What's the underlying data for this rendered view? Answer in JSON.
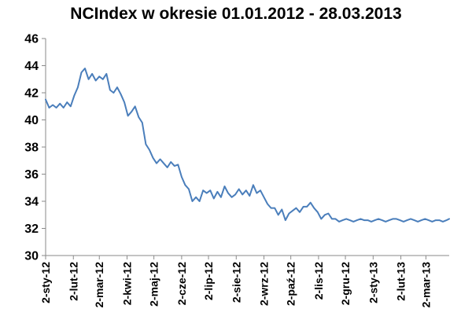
{
  "chart_data": {
    "type": "line",
    "title": "NCIndex w okresie 01.01.2012 - 28.03.2013",
    "xlabel": "",
    "ylabel": "",
    "ylim": [
      30,
      46
    ],
    "y_ticks": [
      "30",
      "32",
      "34",
      "36",
      "38",
      "40",
      "42",
      "44",
      "46"
    ],
    "x_range": [
      "2012-01-02",
      "2013-03-28"
    ],
    "x_tick_dates": [
      "2012-01-02",
      "2012-02-02",
      "2012-03-02",
      "2012-04-02",
      "2012-05-02",
      "2012-06-02",
      "2012-07-02",
      "2012-08-02",
      "2012-09-02",
      "2012-10-02",
      "2012-11-02",
      "2012-12-02",
      "2013-01-02",
      "2013-02-02",
      "2013-03-02"
    ],
    "x_tick_labels": [
      "2-sty-12",
      "2-lut-12",
      "2-mar-12",
      "2-kwi-12",
      "2-maj-12",
      "2-cze-12",
      "2-lip-12",
      "2-sie-12",
      "2-wrz-12",
      "2-paź-12",
      "2-lis-12",
      "2-gru-12",
      "2-sty-13",
      "2-lut-13",
      "2-mar-13"
    ],
    "grid": "horizontal",
    "legend": "none",
    "line_color": "#4a7ebb",
    "series": [
      {
        "x": [
          "2012-01-02",
          "2012-01-06",
          "2012-01-10",
          "2012-01-14",
          "2012-01-18",
          "2012-01-22",
          "2012-01-26",
          "2012-01-30",
          "2012-02-03",
          "2012-02-07",
          "2012-02-11",
          "2012-02-15",
          "2012-02-19",
          "2012-02-23",
          "2012-02-27",
          "2012-03-02",
          "2012-03-06",
          "2012-03-10",
          "2012-03-14",
          "2012-03-18",
          "2012-03-22",
          "2012-03-26",
          "2012-03-30",
          "2012-04-03",
          "2012-04-07",
          "2012-04-11",
          "2012-04-15",
          "2012-04-19",
          "2012-04-23",
          "2012-04-27",
          "2012-05-01",
          "2012-05-05",
          "2012-05-09",
          "2012-05-13",
          "2012-05-17",
          "2012-05-21",
          "2012-05-25",
          "2012-05-29",
          "2012-06-02",
          "2012-06-06",
          "2012-06-10",
          "2012-06-14",
          "2012-06-18",
          "2012-06-22",
          "2012-06-26",
          "2012-06-30",
          "2012-07-04",
          "2012-07-08",
          "2012-07-12",
          "2012-07-16",
          "2012-07-20",
          "2012-07-24",
          "2012-07-28",
          "2012-08-01",
          "2012-08-05",
          "2012-08-09",
          "2012-08-13",
          "2012-08-17",
          "2012-08-21",
          "2012-08-25",
          "2012-08-29",
          "2012-09-02",
          "2012-09-06",
          "2012-09-10",
          "2012-09-14",
          "2012-09-18",
          "2012-09-22",
          "2012-09-26",
          "2012-09-30",
          "2012-10-04",
          "2012-10-08",
          "2012-10-12",
          "2012-10-16",
          "2012-10-20",
          "2012-10-24",
          "2012-10-28",
          "2012-11-01",
          "2012-11-05",
          "2012-11-09",
          "2012-11-13",
          "2012-11-17",
          "2012-11-21",
          "2012-11-25",
          "2012-11-29",
          "2012-12-03",
          "2012-12-07",
          "2012-12-11",
          "2012-12-15",
          "2012-12-19",
          "2012-12-23",
          "2012-12-27",
          "2012-12-31",
          "2013-01-04",
          "2013-01-08",
          "2013-01-12",
          "2013-01-16",
          "2013-01-20",
          "2013-01-24",
          "2013-01-28",
          "2013-02-01",
          "2013-02-05",
          "2013-02-09",
          "2013-02-13",
          "2013-02-17",
          "2013-02-21",
          "2013-02-25",
          "2013-03-01",
          "2013-03-05",
          "2013-03-09",
          "2013-03-13",
          "2013-03-17",
          "2013-03-21",
          "2013-03-25",
          "2013-03-28"
        ],
        "values": [
          41.5,
          40.9,
          41.1,
          40.9,
          41.2,
          40.9,
          41.3,
          41.0,
          41.8,
          42.4,
          43.5,
          43.8,
          43.0,
          43.4,
          42.9,
          43.2,
          43.0,
          43.4,
          42.2,
          42.0,
          42.4,
          41.9,
          41.3,
          40.3,
          40.6,
          41.0,
          40.2,
          39.8,
          38.2,
          37.8,
          37.2,
          36.8,
          37.1,
          36.8,
          36.5,
          36.9,
          36.6,
          36.7,
          35.8,
          35.2,
          34.9,
          34.0,
          34.3,
          34.0,
          34.8,
          34.6,
          34.8,
          34.2,
          34.7,
          34.3,
          35.1,
          34.6,
          34.3,
          34.5,
          34.9,
          34.5,
          34.8,
          34.4,
          35.2,
          34.6,
          34.8,
          34.3,
          33.8,
          33.5,
          33.5,
          33.0,
          33.4,
          32.6,
          33.1,
          33.3,
          33.5,
          33.2,
          33.6,
          33.6,
          33.9,
          33.5,
          33.2,
          32.7,
          33.0,
          33.1,
          32.7,
          32.7,
          32.5,
          32.6,
          32.7,
          32.6,
          32.5,
          32.6,
          32.7,
          32.6,
          32.6,
          32.5,
          32.6,
          32.7,
          32.6,
          32.5,
          32.6,
          32.7,
          32.7,
          32.6,
          32.5,
          32.6,
          32.7,
          32.6,
          32.5,
          32.6,
          32.7,
          32.6,
          32.5,
          32.6,
          32.6,
          32.5,
          32.6,
          32.7
        ]
      }
    ]
  }
}
